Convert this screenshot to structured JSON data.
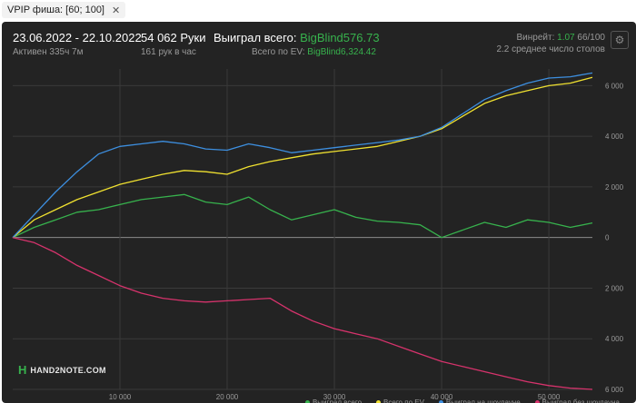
{
  "filter": {
    "label": "VPIP фиша: [60; 100]",
    "close": "✕"
  },
  "header": {
    "date_range": "23.06.2022 - 22.10.2022",
    "active": "Активен 335ч 7м",
    "hands": "54 062 Руки",
    "hands_per_hour": "161 рук в час",
    "won_label": "Выиграл всего:",
    "won_value": "BigBlind576.73",
    "ev_label": "Всего по EV:",
    "ev_value": "BigBlind6,324.42",
    "winrate_label": "Винрейт:",
    "winrate_value": "1.07",
    "winrate_unit": "66/100",
    "tables": "2.2 среднее число столов",
    "gear_icon": "gear-icon"
  },
  "logo": {
    "mark": "H",
    "text": "HAND2NOTE.COM"
  },
  "colors": {
    "background": "#232323",
    "grid": "#3a3a3a",
    "zero": "#8c8c8c",
    "text": "#9a9a9a",
    "won": "#37b24d",
    "ev": "#f0e130",
    "showdown": "#3d8fe0",
    "nonshowdown": "#d6336c"
  },
  "chart_data": {
    "type": "line",
    "x": [
      0,
      2000,
      4000,
      6000,
      8000,
      10000,
      12000,
      14000,
      16000,
      18000,
      20000,
      22000,
      24000,
      26000,
      28000,
      30000,
      32000,
      34000,
      36000,
      38000,
      40000,
      42000,
      44000,
      46000,
      48000,
      50000,
      52000,
      54062
    ],
    "xlim": [
      0,
      54062
    ],
    "ylim": [
      -6000,
      6300
    ],
    "xticks": [
      10000,
      20000,
      30000,
      40000,
      50000
    ],
    "xtick_labels": [
      "10 000",
      "20 000",
      "30 000",
      "40 000",
      "50 000"
    ],
    "yticks": [
      -6000,
      -4000,
      -2000,
      0,
      2000,
      4000,
      6000
    ],
    "ytick_labels": [
      "6 000",
      "4 000",
      "2 000",
      "0",
      "2 000",
      "4 000",
      "6 000"
    ],
    "series": [
      {
        "name": "Выиграл всего",
        "color": "#37b24d",
        "values": [
          0,
          400,
          700,
          1000,
          1100,
          1300,
          1500,
          1600,
          1700,
          1400,
          1300,
          1600,
          1100,
          700,
          900,
          1100,
          800,
          650,
          600,
          500,
          0,
          300,
          600,
          400,
          700,
          600,
          400,
          577
        ]
      },
      {
        "name": "Всего по EV",
        "color": "#f0e130",
        "values": [
          0,
          700,
          1100,
          1500,
          1800,
          2100,
          2300,
          2500,
          2650,
          2600,
          2500,
          2800,
          3000,
          3150,
          3300,
          3400,
          3500,
          3600,
          3800,
          4000,
          4300,
          4800,
          5300,
          5600,
          5800,
          6000,
          6100,
          6324
        ]
      },
      {
        "name": "Выиграл на шоудауне",
        "color": "#3d8fe0",
        "values": [
          0,
          900,
          1800,
          2600,
          3300,
          3600,
          3700,
          3800,
          3700,
          3500,
          3450,
          3700,
          3550,
          3350,
          3450,
          3550,
          3650,
          3750,
          3850,
          4000,
          4350,
          4900,
          5450,
          5800,
          6100,
          6300,
          6350,
          6500
        ]
      },
      {
        "name": "Выиграл без шоудауна",
        "color": "#d6336c",
        "values": [
          0,
          -200,
          -600,
          -1100,
          -1500,
          -1900,
          -2200,
          -2400,
          -2500,
          -2550,
          -2500,
          -2450,
          -2400,
          -2900,
          -3300,
          -3600,
          -3800,
          -4000,
          -4300,
          -4600,
          -4900,
          -5100,
          -5300,
          -5500,
          -5700,
          -5850,
          -5950,
          -6000
        ]
      }
    ]
  }
}
